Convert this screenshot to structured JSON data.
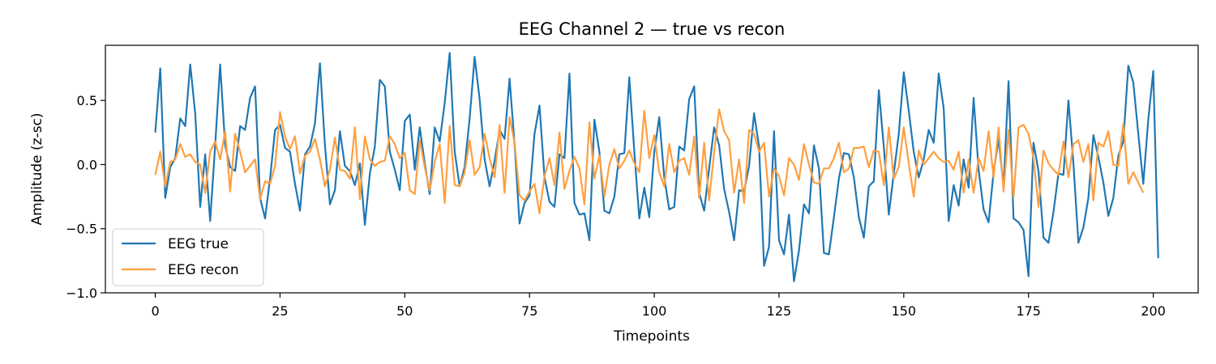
{
  "chart_data": {
    "type": "line",
    "title": "EEG Channel 2 — true vs recon",
    "xlabel": "Timepoints",
    "ylabel": "Amplitude (z-sc)",
    "xlim": [
      -10,
      209
    ],
    "ylim": [
      -1.0,
      0.93
    ],
    "xticks": [
      0,
      25,
      50,
      75,
      100,
      125,
      150,
      175,
      200
    ],
    "xtick_labels": [
      "0",
      "25",
      "50",
      "75",
      "100",
      "125",
      "150",
      "175",
      "200"
    ],
    "yticks": [
      -1.0,
      -0.5,
      0.0,
      0.5
    ],
    "ytick_labels": [
      "−1.0",
      "−0.5",
      "0.0",
      "0.5"
    ],
    "grid": false,
    "legend_position": "lower-left",
    "series": [
      {
        "name": "EEG true",
        "color": "#1f77b4",
        "values": [
          0.25,
          0.75,
          -0.26,
          -0.02,
          0.05,
          0.36,
          0.3,
          0.78,
          0.4,
          -0.33,
          0.08,
          -0.44,
          0.15,
          0.78,
          0.15,
          -0.02,
          -0.05,
          0.3,
          0.27,
          0.52,
          0.61,
          -0.26,
          -0.42,
          -0.11,
          0.27,
          0.31,
          0.13,
          0.1,
          -0.15,
          -0.36,
          0.08,
          0.14,
          0.32,
          0.79,
          0.15,
          -0.31,
          -0.2,
          0.26,
          -0.01,
          -0.05,
          -0.16,
          0.01,
          -0.47,
          -0.07,
          0.14,
          0.66,
          0.61,
          0.1,
          -0.04,
          -0.2,
          0.34,
          0.39,
          -0.04,
          0.29,
          0.01,
          -0.23,
          0.29,
          0.18,
          0.48,
          0.87,
          0.1,
          -0.17,
          -0.02,
          0.36,
          0.84,
          0.51,
          0.04,
          -0.17,
          0.03,
          0.27,
          0.2,
          0.67,
          0.16,
          -0.46,
          -0.3,
          -0.24,
          0.24,
          0.46,
          -0.1,
          -0.29,
          -0.33,
          0.08,
          0.05,
          0.71,
          -0.3,
          -0.39,
          -0.38,
          -0.59,
          0.35,
          0.1,
          -0.36,
          -0.38,
          -0.25,
          0.08,
          0.09,
          0.68,
          0.1,
          -0.42,
          -0.18,
          -0.41,
          0.1,
          0.37,
          -0.1,
          -0.35,
          -0.33,
          0.14,
          0.11,
          0.51,
          0.61,
          -0.22,
          -0.36,
          -0.03,
          0.29,
          0.15,
          -0.19,
          -0.37,
          -0.59,
          -0.2,
          -0.21,
          -0.01,
          0.4,
          0.14,
          -0.79,
          -0.64,
          0.26,
          -0.59,
          -0.7,
          -0.39,
          -0.91,
          -0.67,
          -0.31,
          -0.38,
          0.15,
          -0.03,
          -0.69,
          -0.7,
          -0.41,
          -0.11,
          0.09,
          0.08,
          -0.1,
          -0.41,
          -0.57,
          -0.17,
          -0.13,
          0.58,
          0.14,
          -0.39,
          -0.07,
          0.24,
          0.72,
          0.42,
          0.1,
          -0.1,
          0.04,
          0.27,
          0.17,
          0.71,
          0.44,
          -0.44,
          -0.16,
          -0.32,
          0.04,
          -0.18,
          0.52,
          -0.04,
          -0.35,
          -0.45,
          -0.06,
          0.2,
          -0.17,
          0.65,
          -0.42,
          -0.45,
          -0.51,
          -0.87,
          0.17,
          -0.05,
          -0.57,
          -0.61,
          -0.37,
          -0.07,
          -0.08,
          0.5,
          0.01,
          -0.61,
          -0.49,
          -0.26,
          0.23,
          0.06,
          -0.14,
          -0.4,
          -0.26,
          0.07,
          0.18,
          0.77,
          0.64,
          0.24,
          -0.15,
          0.35,
          0.73,
          -0.73
        ]
      },
      {
        "name": "EEG recon",
        "color": "#ff9f40",
        "values": [
          -0.08,
          0.1,
          -0.17,
          0.02,
          0.04,
          0.16,
          0.06,
          0.08,
          0.02,
          0.0,
          -0.22,
          0.1,
          0.18,
          0.04,
          0.26,
          -0.21,
          0.24,
          0.1,
          -0.06,
          -0.01,
          0.04,
          -0.27,
          -0.13,
          -0.15,
          -0.01,
          0.41,
          0.22,
          0.12,
          0.22,
          -0.07,
          0.07,
          0.1,
          0.2,
          0.04,
          -0.17,
          -0.04,
          0.21,
          -0.04,
          -0.05,
          -0.11,
          0.29,
          -0.27,
          0.22,
          0.04,
          -0.01,
          0.02,
          0.03,
          0.22,
          0.16,
          0.05,
          0.09,
          -0.2,
          -0.23,
          0.19,
          -0.02,
          -0.2,
          0.02,
          0.16,
          -0.3,
          0.3,
          -0.16,
          -0.17,
          -0.06,
          0.19,
          -0.08,
          -0.02,
          0.24,
          0.05,
          -0.1,
          0.31,
          -0.22,
          0.37,
          0.17,
          -0.24,
          -0.28,
          -0.21,
          -0.15,
          -0.38,
          -0.09,
          0.05,
          -0.16,
          0.25,
          -0.19,
          -0.05,
          0.06,
          -0.03,
          -0.31,
          0.33,
          -0.11,
          0.07,
          -0.25,
          0.0,
          0.12,
          -0.03,
          0.03,
          0.11,
          0.01,
          -0.06,
          0.42,
          0.05,
          0.23,
          -0.06,
          -0.17,
          0.16,
          -0.06,
          0.03,
          0.05,
          -0.08,
          0.22,
          -0.26,
          0.17,
          -0.28,
          0.1,
          0.43,
          0.26,
          0.19,
          -0.22,
          0.04,
          -0.3,
          0.27,
          0.24,
          0.1,
          0.17,
          -0.25,
          -0.03,
          -0.09,
          -0.24,
          0.05,
          0.0,
          -0.12,
          0.16,
          0.0,
          -0.14,
          -0.15,
          -0.03,
          -0.03,
          0.05,
          0.17,
          -0.06,
          -0.03,
          0.13,
          0.13,
          0.14,
          -0.02,
          0.11,
          0.1,
          -0.16,
          0.29,
          -0.11,
          -0.02,
          0.29,
          0.01,
          -0.25,
          0.11,
          0.0,
          0.05,
          0.1,
          0.05,
          0.02,
          0.03,
          -0.04,
          0.1,
          -0.22,
          0.04,
          -0.22,
          0.05,
          -0.05,
          0.26,
          -0.1,
          0.29,
          -0.21,
          0.27,
          -0.26,
          0.29,
          0.31,
          0.24,
          0.05,
          -0.33,
          0.11,
          0.01,
          -0.04,
          -0.08,
          0.18,
          -0.1,
          0.16,
          0.19,
          0.02,
          0.16,
          -0.28,
          0.17,
          0.14,
          0.26,
          0.0,
          -0.01,
          0.32,
          -0.15,
          -0.06,
          -0.14,
          -0.22
        ]
      }
    ]
  }
}
